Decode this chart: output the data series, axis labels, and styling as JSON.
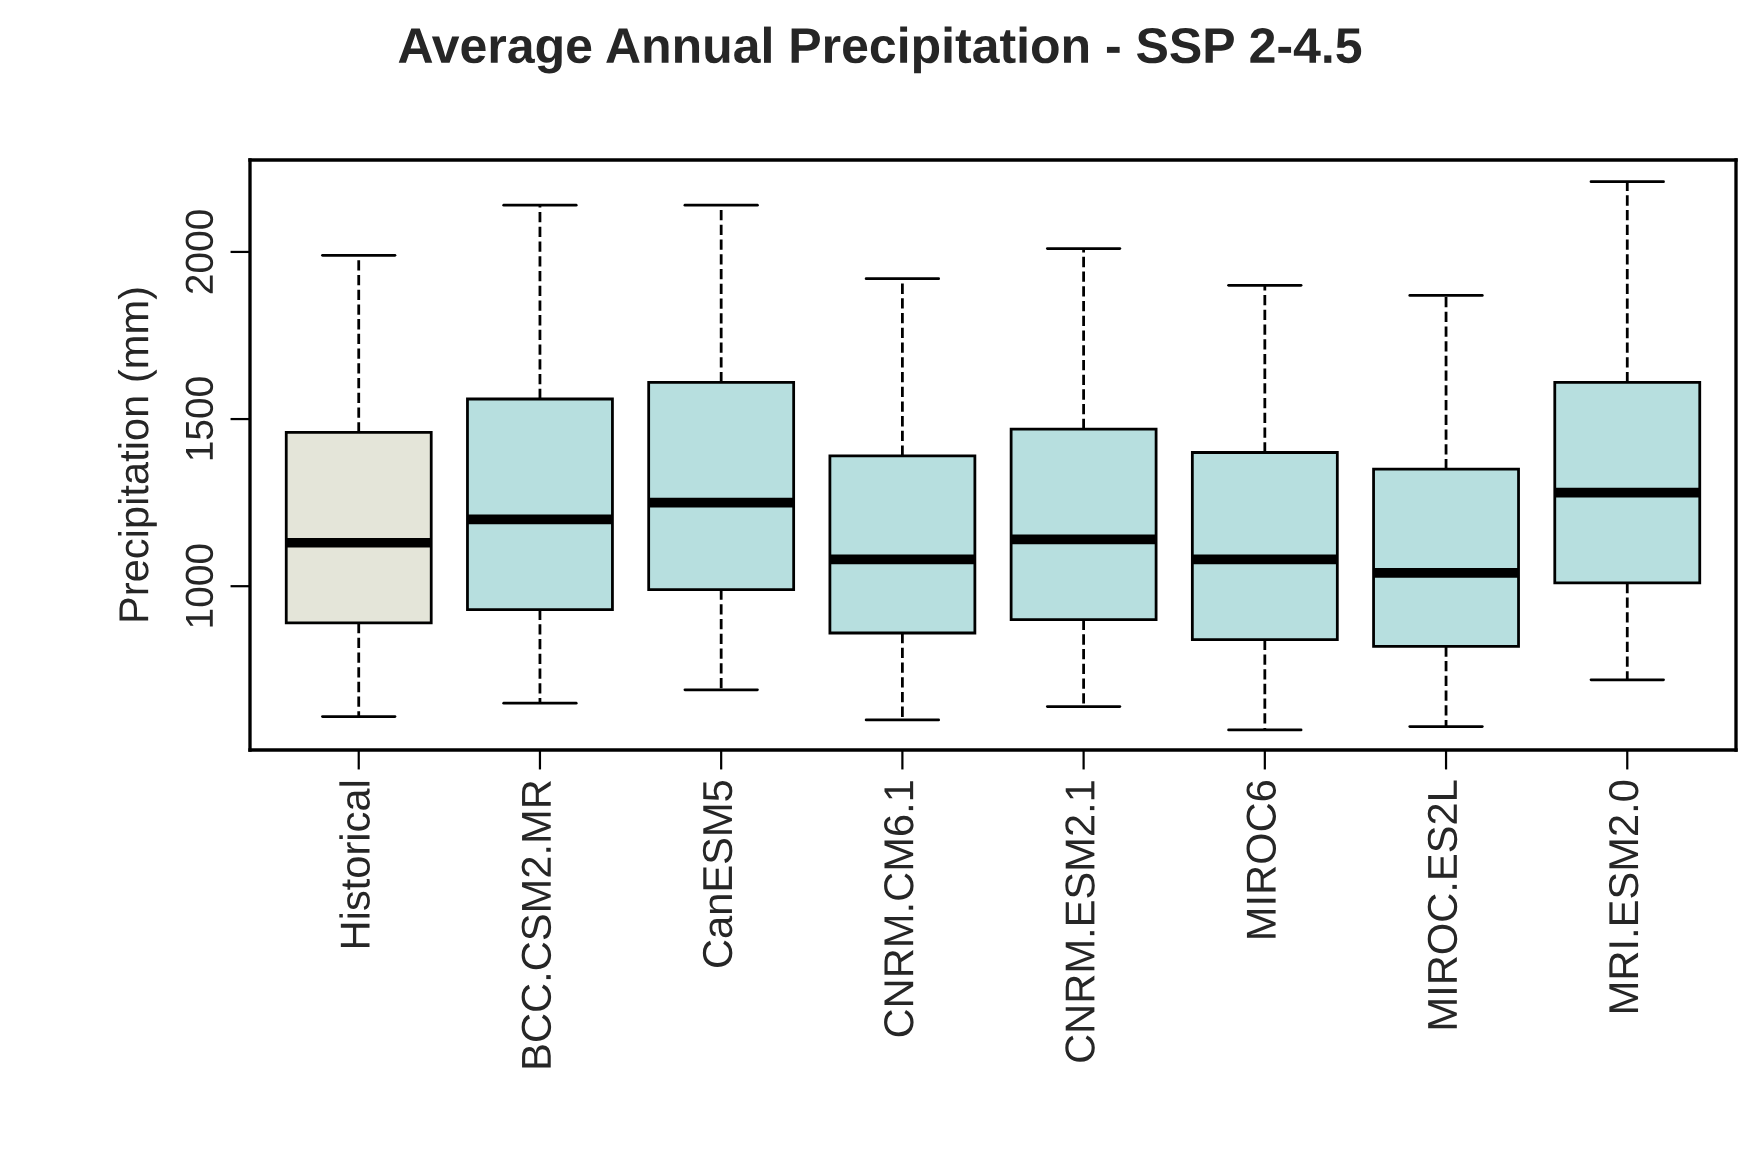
{
  "chart_data": {
    "type": "box",
    "title": "Average Annual Precipitation - SSP 2-4.5",
    "ylabel": "Precipitation (mm)",
    "categories": [
      "Historical",
      "BCC.CSM2.MR",
      "CanESM5",
      "CNRM.CM6.1",
      "CNRM.ESM2.1",
      "MIROC6",
      "MIROC.ES2L",
      "MRI.ESM2.0"
    ],
    "colors": [
      "#e4e5d9",
      "#b7dfdf",
      "#b7dfdf",
      "#b7dfdf",
      "#b7dfdf",
      "#b7dfdf",
      "#b7dfdf",
      "#b7dfdf"
    ],
    "boxes": [
      {
        "low": 610,
        "q1": 890,
        "median": 1130,
        "q3": 1460,
        "high": 1990
      },
      {
        "low": 650,
        "q1": 930,
        "median": 1200,
        "q3": 1560,
        "high": 2140
      },
      {
        "low": 690,
        "q1": 990,
        "median": 1250,
        "q3": 1610,
        "high": 2140
      },
      {
        "low": 600,
        "q1": 860,
        "median": 1080,
        "q3": 1390,
        "high": 1920
      },
      {
        "low": 640,
        "q1": 900,
        "median": 1140,
        "q3": 1470,
        "high": 2010
      },
      {
        "low": 570,
        "q1": 840,
        "median": 1080,
        "q3": 1400,
        "high": 1900
      },
      {
        "low": 580,
        "q1": 820,
        "median": 1040,
        "q3": 1350,
        "high": 1870
      },
      {
        "low": 720,
        "q1": 1010,
        "median": 1280,
        "q3": 1610,
        "high": 2210
      }
    ],
    "ylim": [
      510,
      2275
    ],
    "yticks": [
      1000,
      1500,
      2000
    ],
    "line_style": "dashed"
  }
}
